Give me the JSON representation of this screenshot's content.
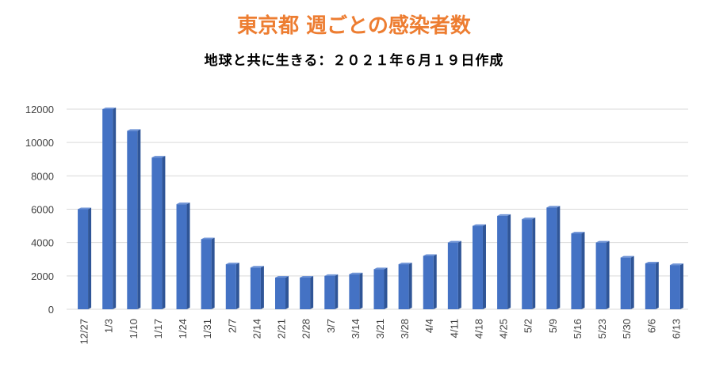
{
  "chart_data": {
    "type": "bar",
    "title": "東京都 週ごとの感染者数",
    "subtitle": "地球と共に生きる：２０２１年６月１９日作成",
    "categories": [
      "12/27",
      "1/3",
      "1/10",
      "1/17",
      "1/24",
      "1/31",
      "2/7",
      "2/14",
      "2/21",
      "2/28",
      "3/7",
      "3/14",
      "3/21",
      "3/28",
      "4/4",
      "4/11",
      "4/18",
      "4/25",
      "5/2",
      "5/9",
      "5/16",
      "5/23",
      "5/30",
      "6/6",
      "6/13"
    ],
    "values": [
      6000,
      12000,
      10700,
      9100,
      6300,
      4200,
      2700,
      2500,
      1900,
      1900,
      2000,
      2100,
      2400,
      2700,
      3200,
      4000,
      5000,
      5600,
      5400,
      6100,
      4550,
      4000,
      3100,
      2750,
      2650
    ],
    "yticks": [
      0,
      2000,
      4000,
      6000,
      8000,
      10000,
      12000
    ],
    "ylim": [
      0,
      12000
    ],
    "grid": true,
    "colors": {
      "bar_front": "#4472C4",
      "bar_side": "#2F5597",
      "bar_top": "#6E93D6",
      "grid": "#D9D9D9",
      "title": "#ED7D31"
    }
  }
}
